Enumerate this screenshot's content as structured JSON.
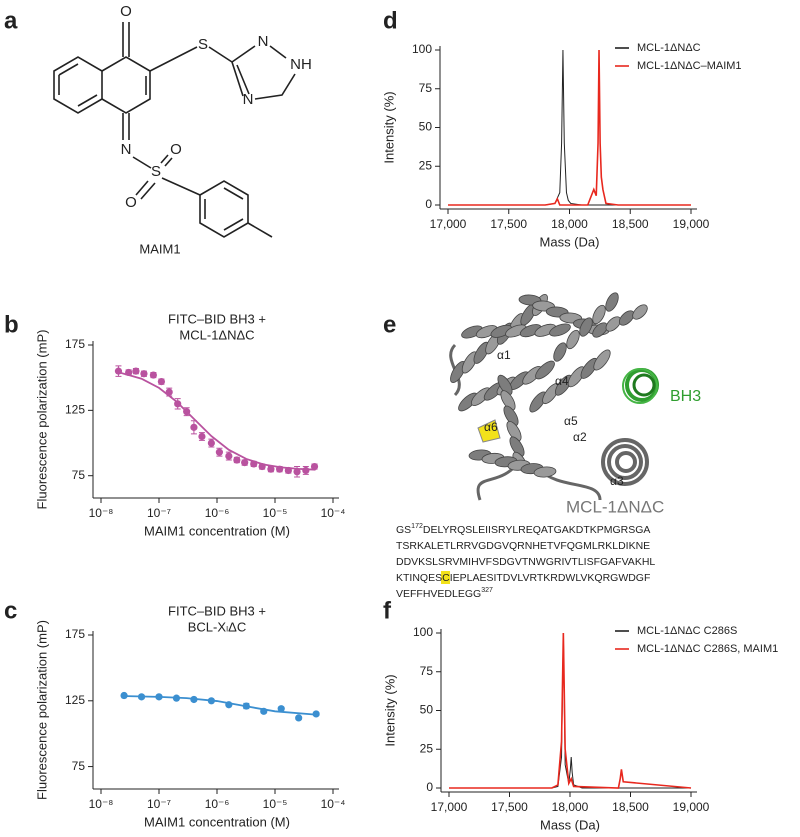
{
  "panels": [
    "a",
    "b",
    "c",
    "d",
    "e",
    "f"
  ],
  "molecule": {
    "name": "MAIM1",
    "atoms": [
      "O",
      "S",
      "N",
      "NH",
      "N",
      "N",
      "S",
      "O",
      "O"
    ]
  },
  "structure": {
    "label": "MCL-1ΔNΔC",
    "helices": [
      "α1",
      "α4",
      "α6",
      "α5",
      "α2",
      "α3"
    ],
    "peptide": "BH3",
    "sequence": {
      "prefix": "GS",
      "first_residue": 172,
      "first_line": "DELYRQSLEIISRYLREQATGAKDTKPMGRSGA",
      "lines": [
        "TSRKALETLRRVGDGVQRNHETVFQGMLRKLDIKNE",
        "DDVKSLSRVMIHVFSDGVTNWGRIVTLISFGAFVAKHL"
      ],
      "before_highlight": "KTINQES",
      "highlight": "C",
      "after_highlight": "IEPLAESITDVLVRTKRDWLVKQRGWDGF",
      "last_line": "VEFFHVEDLEGG",
      "last_residue": 327
    }
  },
  "chart_data": [
    {
      "type": "scatter",
      "title": [
        "FITC–BID BH3 +",
        "MCL-1ΔNΔC"
      ],
      "x_label": "MAIM1 concentration (M)",
      "y_label": "Fluorescence polarization (mP)",
      "x_scale": "log",
      "xlim": [
        1e-08,
        0.0001
      ],
      "xticks": [
        {
          "value": 1e-08,
          "label": "10⁻⁸"
        },
        {
          "value": 1e-07,
          "label": "10⁻⁷"
        },
        {
          "value": 1e-06,
          "label": "10⁻⁶"
        },
        {
          "value": 1e-05,
          "label": "10⁻⁵"
        },
        {
          "value": 0.0001,
          "label": "10⁻⁴"
        }
      ],
      "ylim": [
        61,
        175
      ],
      "yticks": [
        75,
        125,
        175
      ],
      "color": "#b9529f",
      "x": [
        2e-08,
        3e-08,
        4e-08,
        5.5e-08,
        8e-08,
        1.1e-07,
        1.5e-07,
        2.1e-07,
        3e-07,
        4e-07,
        5.5e-07,
        8e-07,
        1.1e-06,
        1.6e-06,
        2.2e-06,
        3e-06,
        4.3e-06,
        6e-06,
        8.5e-06,
        1.2e-05,
        1.7e-05,
        2.4e-05,
        3.4e-05,
        4.8e-05
      ],
      "values": [
        155,
        154,
        155,
        153,
        152,
        147,
        139,
        130,
        124,
        112,
        105,
        100,
        93,
        90,
        87,
        85,
        84,
        82,
        80,
        80,
        79,
        78,
        79,
        82
      ],
      "errors": [
        4,
        2,
        2,
        2,
        2,
        2,
        3,
        4,
        3,
        5,
        3,
        3,
        3,
        3,
        2,
        2,
        2,
        2,
        2,
        2,
        2,
        4,
        3,
        2
      ],
      "fit": {
        "x": [
          2e-08,
          5e-08,
          1e-07,
          2e-07,
          4e-07,
          8e-07,
          1.6e-06,
          3.2e-06,
          6.4e-06,
          1.28e-05,
          2.56e-05,
          5e-05
        ],
        "values": [
          154.2,
          149.2,
          142.2,
          131.7,
          118.5,
          105.3,
          94.8,
          87.8,
          83.6,
          81.4,
          80.2,
          79.6
        ]
      }
    },
    {
      "type": "scatter",
      "title": [
        "FITC–BID BH3 +",
        "BCL-XₗΔC"
      ],
      "x_label": "MAIM1 concentration (M)",
      "y_label": "Fluorescence polarization (mP)",
      "x_scale": "log",
      "xlim": [
        1e-08,
        0.0001
      ],
      "xticks": [
        {
          "value": 1e-08,
          "label": "10⁻⁸"
        },
        {
          "value": 1e-07,
          "label": "10⁻⁷"
        },
        {
          "value": 1e-06,
          "label": "10⁻⁶"
        },
        {
          "value": 1e-05,
          "label": "10⁻⁵"
        },
        {
          "value": 0.0001,
          "label": "10⁻⁴"
        }
      ],
      "ylim": [
        61,
        175
      ],
      "yticks": [
        75,
        125,
        175
      ],
      "color": "#3b8fd0",
      "x": [
        2.5e-08,
        5e-08,
        1e-07,
        2e-07,
        4e-07,
        8e-07,
        1.6e-06,
        3.2e-06,
        6.4e-06,
        1.28e-05,
        2.56e-05,
        5.12e-05
      ],
      "values": [
        129,
        128,
        128,
        127,
        126,
        125,
        122,
        121,
        117,
        119,
        112,
        115
      ],
      "errors": [
        1,
        1,
        1,
        1,
        1,
        1,
        1,
        2,
        1,
        1,
        1,
        1
      ],
      "fit": {
        "x": [
          2.5e-08,
          1e-07,
          3e-07,
          1e-06,
          3e-06,
          1e-05,
          5e-05
        ],
        "values": [
          128.6,
          128,
          127,
          124.8,
          121,
          117,
          114.5
        ]
      }
    },
    {
      "type": "line",
      "x_label": "Mass (Da)",
      "y_label": "Intensity (%)",
      "xlim": [
        17000,
        19000
      ],
      "xticks": [
        {
          "value": 17000,
          "label": "17,000"
        },
        {
          "value": 17500,
          "label": "17,500"
        },
        {
          "value": 18000,
          "label": "18,000"
        },
        {
          "value": 18500,
          "label": "18,500"
        },
        {
          "value": 19000,
          "label": "19,000"
        }
      ],
      "ylim": [
        0,
        100
      ],
      "yticks": [
        0,
        25,
        50,
        75,
        100
      ],
      "legend": "upper right",
      "series": [
        {
          "name": "MCL-1ΔNΔC",
          "color": "#222222",
          "x": [
            17000,
            17800,
            17880,
            17920,
            17935,
            17946,
            17957,
            17975,
            17990,
            18010,
            18100,
            19000
          ],
          "values": [
            0,
            0,
            1,
            8,
            40,
            100,
            40,
            8,
            3,
            1,
            0,
            0
          ]
        },
        {
          "name": "MCL-1ΔNΔC–MAIM1",
          "color": "#e8281e",
          "x": [
            17000,
            17800,
            17880,
            17900,
            17920,
            18150,
            18200,
            18220,
            18235,
            18243,
            18252,
            18262,
            18275,
            18300,
            18400,
            19000
          ],
          "values": [
            0,
            0,
            1,
            4,
            0,
            0,
            10,
            6,
            40,
            100,
            40,
            18,
            10,
            1,
            0,
            0
          ]
        }
      ]
    },
    {
      "type": "line",
      "x_label": "Mass (Da)",
      "y_label": "Intensity (%)",
      "xlim": [
        17000,
        19000
      ],
      "xticks": [
        {
          "value": 17000,
          "label": "17,000"
        },
        {
          "value": 17500,
          "label": "17,500"
        },
        {
          "value": 18000,
          "label": "18,000"
        },
        {
          "value": 18500,
          "label": "18,500"
        },
        {
          "value": 19000,
          "label": "19,000"
        }
      ],
      "ylim": [
        0,
        100
      ],
      "yticks": [
        0,
        25,
        50,
        75,
        100
      ],
      "legend": "upper right",
      "series": [
        {
          "name": "MCL-1ΔNΔC C286S",
          "color": "#222222",
          "x": [
            17000,
            17850,
            17900,
            17930,
            17945,
            17960,
            17990,
            18003,
            18010,
            18018,
            18030,
            18100,
            19000
          ],
          "values": [
            0,
            0,
            1,
            20,
            100,
            15,
            3,
            12,
            20,
            10,
            2,
            0,
            0
          ]
        },
        {
          "name": "MCL-1ΔNΔC C286S, MAIM1",
          "color": "#e8281e",
          "x": [
            17000,
            17850,
            17900,
            17930,
            17945,
            17960,
            17990,
            18010,
            18030,
            18400,
            18415,
            18425,
            18440,
            19000
          ],
          "values": [
            0,
            0,
            2,
            30,
            100,
            25,
            3,
            6,
            1,
            0,
            6,
            12,
            4,
            0
          ]
        }
      ]
    }
  ]
}
